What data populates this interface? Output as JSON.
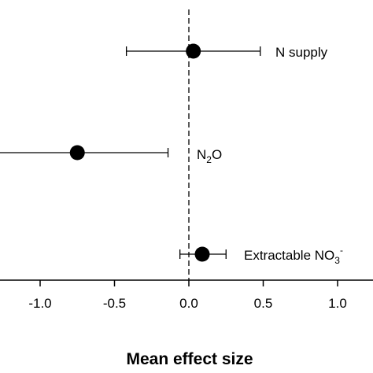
{
  "chart_data": {
    "type": "scatter",
    "subtype": "forest-plot",
    "xlabel": "Mean effect size",
    "ylabel": "",
    "title": "",
    "xlim": [
      -1.3,
      1.2
    ],
    "xticks": [
      -1.0,
      -0.5,
      0.0,
      0.5,
      1.0
    ],
    "xtick_labels": [
      "-1.0",
      "-0.5",
      "0.0",
      "0.5",
      "1.0"
    ],
    "reference_line": {
      "x": 0.0,
      "style": "dashed"
    },
    "grid": false,
    "legend": "none",
    "points": [
      {
        "label": "N supply",
        "label_parts": [
          {
            "t": "N supply"
          }
        ],
        "mean": 0.03,
        "ci_low": -0.42,
        "ci_high": 0.48
      },
      {
        "label": "N2O",
        "label_parts": [
          {
            "t": "N"
          },
          {
            "t": "2",
            "sub": true
          },
          {
            "t": "O"
          }
        ],
        "mean": -0.75,
        "ci_low": -1.45,
        "ci_high": -0.14
      },
      {
        "label": "Extractable NO3-",
        "label_parts": [
          {
            "t": "Extractable NO"
          },
          {
            "t": "3",
            "sub": true
          },
          {
            "t": "-",
            "sup": true
          }
        ],
        "mean": 0.09,
        "ci_low": -0.06,
        "ci_high": 0.25
      }
    ],
    "colors": {
      "marker": "#000000",
      "line": "#000000"
    }
  }
}
